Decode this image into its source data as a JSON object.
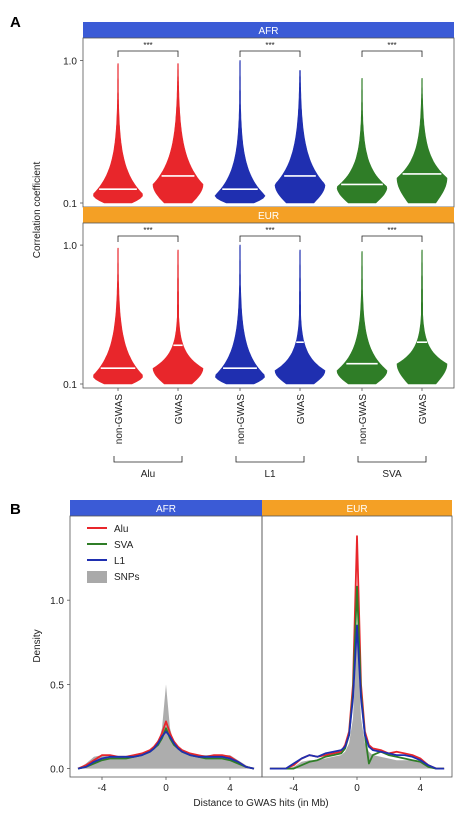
{
  "panel_labels": {
    "a": "A",
    "b": "B"
  },
  "colors": {
    "afr_strip": "#3b5bd6",
    "eur_strip": "#f4a025",
    "alu": "#e8262b",
    "l1": "#1f2fb0",
    "sva": "#2f7d27",
    "snp": "#a9a9a9"
  },
  "chart_data": [
    {
      "type": "violin",
      "panel": "A",
      "ylabel": "Correlation coefficient",
      "yscale": "log",
      "ylim": [
        0.1,
        1.35
      ],
      "yticks": [
        0.1,
        1.0
      ],
      "ytick_labels": [
        "0.1",
        "1.0"
      ],
      "grid": false,
      "facets": [
        "AFR",
        "EUR"
      ],
      "categories": [
        "non-GWAS",
        "GWAS",
        "non-GWAS",
        "GWAS",
        "non-GWAS",
        "GWAS"
      ],
      "groups": [
        {
          "label": "Alu",
          "color_key": "alu"
        },
        {
          "label": "L1",
          "color_key": "l1"
        },
        {
          "label": "SVA",
          "color_key": "sva"
        }
      ],
      "significance": "***",
      "series": [
        {
          "facet": "AFR",
          "group": "Alu",
          "category": "non-GWAS",
          "median": 0.125,
          "max": 0.95,
          "mode": 0.115,
          "spread": 0.62
        },
        {
          "facet": "AFR",
          "group": "Alu",
          "category": "GWAS",
          "median": 0.155,
          "max": 0.95,
          "mode": 0.135,
          "spread": 0.74
        },
        {
          "facet": "AFR",
          "group": "L1",
          "category": "non-GWAS",
          "median": 0.125,
          "max": 1.0,
          "mode": 0.113,
          "spread": 0.58
        },
        {
          "facet": "AFR",
          "group": "L1",
          "category": "GWAS",
          "median": 0.155,
          "max": 0.85,
          "mode": 0.135,
          "spread": 0.78
        },
        {
          "facet": "AFR",
          "group": "SVA",
          "category": "non-GWAS",
          "median": 0.135,
          "max": 0.75,
          "mode": 0.13,
          "spread": 0.6
        },
        {
          "facet": "AFR",
          "group": "SVA",
          "category": "GWAS",
          "median": 0.16,
          "max": 0.75,
          "mode": 0.15,
          "spread": 0.7
        },
        {
          "facet": "EUR",
          "group": "Alu",
          "category": "non-GWAS",
          "median": 0.13,
          "max": 0.95,
          "mode": 0.115,
          "spread": 0.65
        },
        {
          "facet": "EUR",
          "group": "Alu",
          "category": "GWAS",
          "median": 0.19,
          "max": 0.92,
          "mode": 0.13,
          "spread": 0.4
        },
        {
          "facet": "EUR",
          "group": "L1",
          "category": "non-GWAS",
          "median": 0.13,
          "max": 1.0,
          "mode": 0.115,
          "spread": 0.6
        },
        {
          "facet": "EUR",
          "group": "L1",
          "category": "GWAS",
          "median": 0.2,
          "max": 0.92,
          "mode": 0.125,
          "spread": 0.42
        },
        {
          "facet": "EUR",
          "group": "SVA",
          "category": "non-GWAS",
          "median": 0.14,
          "max": 0.9,
          "mode": 0.125,
          "spread": 0.58
        },
        {
          "facet": "EUR",
          "group": "SVA",
          "category": "GWAS",
          "median": 0.2,
          "max": 0.92,
          "mode": 0.14,
          "spread": 0.4
        }
      ]
    },
    {
      "type": "area",
      "panel": "B",
      "xlabel": "Distance to GWAS hits (in Mb)",
      "ylabel": "Density",
      "facets": [
        "AFR",
        "EUR"
      ],
      "xlim": [
        -6,
        6
      ],
      "ylim": [
        -0.05,
        1.5
      ],
      "xticks": [
        -4,
        0,
        4
      ],
      "xtick_labels": [
        "-4",
        "0",
        "4"
      ],
      "yticks": [
        0.0,
        0.5,
        1.0
      ],
      "ytick_labels": [
        "0.0",
        "0.5",
        "1.0"
      ],
      "grid": false,
      "legend": {
        "position": "top-left",
        "entries": [
          "Alu",
          "SVA",
          "L1",
          "SNPs"
        ]
      },
      "x": [
        -5.5,
        -5,
        -4.5,
        -4,
        -3.5,
        -3,
        -2.5,
        -2,
        -1.5,
        -1,
        -0.75,
        -0.5,
        -0.25,
        0,
        0.25,
        0.5,
        0.75,
        1,
        1.5,
        2,
        2.5,
        3,
        3.5,
        4,
        4.5,
        5,
        5.5
      ],
      "series": [
        {
          "name": "Alu",
          "facet": "AFR",
          "values": [
            0.0,
            0.02,
            0.05,
            0.08,
            0.08,
            0.07,
            0.07,
            0.08,
            0.09,
            0.11,
            0.13,
            0.16,
            0.21,
            0.28,
            0.21,
            0.16,
            0.13,
            0.11,
            0.09,
            0.08,
            0.07,
            0.08,
            0.08,
            0.07,
            0.04,
            0.01,
            0.0
          ]
        },
        {
          "name": "SVA",
          "facet": "AFR",
          "values": [
            0.0,
            0.01,
            0.03,
            0.05,
            0.06,
            0.06,
            0.06,
            0.07,
            0.08,
            0.1,
            0.12,
            0.14,
            0.18,
            0.24,
            0.18,
            0.14,
            0.12,
            0.1,
            0.08,
            0.07,
            0.06,
            0.06,
            0.06,
            0.05,
            0.03,
            0.01,
            0.0
          ]
        },
        {
          "name": "L1",
          "facet": "AFR",
          "values": [
            0.0,
            0.01,
            0.04,
            0.06,
            0.07,
            0.07,
            0.07,
            0.07,
            0.08,
            0.1,
            0.12,
            0.15,
            0.19,
            0.22,
            0.19,
            0.15,
            0.12,
            0.1,
            0.08,
            0.07,
            0.07,
            0.07,
            0.07,
            0.06,
            0.04,
            0.01,
            0.0
          ]
        },
        {
          "name": "SNPs",
          "facet": "AFR",
          "values": [
            0.0,
            0.03,
            0.07,
            0.08,
            0.07,
            0.07,
            0.07,
            0.08,
            0.09,
            0.1,
            0.12,
            0.15,
            0.24,
            0.5,
            0.24,
            0.15,
            0.12,
            0.1,
            0.09,
            0.08,
            0.08,
            0.08,
            0.08,
            0.08,
            0.05,
            0.02,
            0.0
          ]
        },
        {
          "name": "Alu",
          "facet": "EUR",
          "values": [
            0.0,
            0.0,
            0.0,
            0.02,
            0.06,
            0.08,
            0.07,
            0.08,
            0.09,
            0.1,
            0.14,
            0.22,
            0.5,
            1.38,
            0.5,
            0.22,
            0.14,
            0.12,
            0.11,
            0.09,
            0.1,
            0.09,
            0.08,
            0.06,
            0.02,
            0.0,
            0.0
          ]
        },
        {
          "name": "SVA",
          "facet": "EUR",
          "values": [
            0.0,
            0.0,
            0.0,
            0.0,
            0.02,
            0.04,
            0.05,
            0.07,
            0.08,
            0.09,
            0.12,
            0.2,
            0.45,
            1.08,
            0.45,
            0.2,
            0.03,
            0.08,
            0.1,
            0.08,
            0.07,
            0.06,
            0.05,
            0.04,
            0.01,
            0.0,
            0.0
          ]
        },
        {
          "name": "L1",
          "facet": "EUR",
          "values": [
            0.0,
            0.0,
            0.0,
            0.03,
            0.06,
            0.08,
            0.07,
            0.09,
            0.1,
            0.11,
            0.13,
            0.2,
            0.42,
            0.85,
            0.42,
            0.2,
            0.13,
            0.11,
            0.1,
            0.09,
            0.08,
            0.08,
            0.07,
            0.05,
            0.02,
            0.0,
            0.0
          ]
        },
        {
          "name": "SNPs",
          "facet": "EUR",
          "values": [
            0.0,
            0.0,
            0.0,
            0.01,
            0.04,
            0.05,
            0.05,
            0.06,
            0.07,
            0.08,
            0.1,
            0.15,
            0.3,
            0.82,
            0.3,
            0.15,
            0.1,
            0.08,
            0.07,
            0.06,
            0.05,
            0.05,
            0.05,
            0.04,
            0.01,
            0.0,
            0.0
          ]
        }
      ]
    }
  ]
}
